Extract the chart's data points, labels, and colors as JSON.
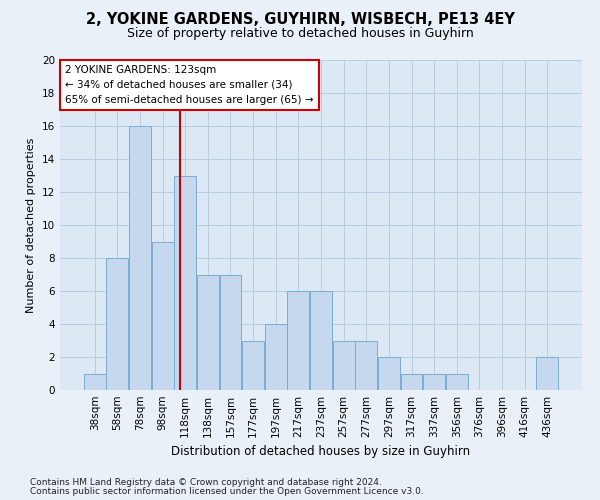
{
  "title1": "2, YOKINE GARDENS, GUYHIRN, WISBECH, PE13 4EY",
  "title2": "Size of property relative to detached houses in Guyhirn",
  "xlabel": "Distribution of detached houses by size in Guyhirn",
  "ylabel": "Number of detached properties",
  "footer1": "Contains HM Land Registry data © Crown copyright and database right 2024.",
  "footer2": "Contains public sector information licensed under the Open Government Licence v3.0.",
  "categories": [
    "38sqm",
    "58sqm",
    "78sqm",
    "98sqm",
    "118sqm",
    "138sqm",
    "157sqm",
    "177sqm",
    "197sqm",
    "217sqm",
    "237sqm",
    "257sqm",
    "277sqm",
    "297sqm",
    "317sqm",
    "337sqm",
    "356sqm",
    "376sqm",
    "396sqm",
    "416sqm",
    "436sqm"
  ],
  "values": [
    1,
    8,
    16,
    9,
    13,
    7,
    7,
    3,
    4,
    6,
    6,
    3,
    3,
    2,
    1,
    1,
    1,
    0,
    0,
    0,
    2
  ],
  "bar_color": "#c5d8ed",
  "bar_edge_color": "#7aadd4",
  "annotation_text_line1": "2 YOKINE GARDENS: 123sqm",
  "annotation_text_line2": "← 34% of detached houses are smaller (34)",
  "annotation_text_line3": "65% of semi-detached houses are larger (65) →",
  "annotation_box_color": "#ffffff",
  "annotation_box_edge_color": "#cc0000",
  "vline_color": "#cc0000",
  "ylim": [
    0,
    20
  ],
  "yticks": [
    0,
    2,
    4,
    6,
    8,
    10,
    12,
    14,
    16,
    18,
    20
  ],
  "background_color": "#eaf0f7",
  "plot_bg_color": "#dce8f4",
  "grid_color": "#b8cce0",
  "title1_fontsize": 10.5,
  "title2_fontsize": 9,
  "xlabel_fontsize": 8.5,
  "ylabel_fontsize": 8,
  "tick_fontsize": 7.5,
  "annotation_fontsize": 7.5,
  "footer_fontsize": 6.5
}
